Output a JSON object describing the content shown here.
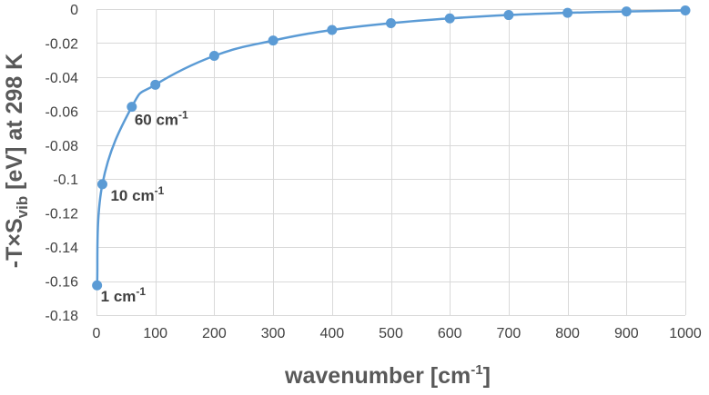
{
  "chart_data": {
    "type": "scatter",
    "title": "",
    "xlabel": {
      "base": "wavenumber [cm",
      "sup": "-1",
      "suffix": "]"
    },
    "ylabel": {
      "pre": "-T×S",
      "sub": "vib",
      "post": " [eV] at 298 K"
    },
    "xlim": [
      0,
      1000
    ],
    "ylim": [
      -0.18,
      0
    ],
    "x_ticks": [
      0,
      100,
      200,
      300,
      400,
      500,
      600,
      700,
      800,
      900,
      1000
    ],
    "x_tick_labels": [
      "0",
      "100",
      "200",
      "300",
      "400",
      "500",
      "600",
      "700",
      "800",
      "900",
      "1000"
    ],
    "y_ticks": [
      0,
      -0.02,
      -0.04,
      -0.06,
      -0.08,
      -0.1,
      -0.12,
      -0.14,
      -0.16,
      -0.18
    ],
    "y_tick_labels": [
      "0",
      "-0.02",
      "-0.04",
      "-0.06",
      "-0.08",
      "-0.1",
      "-0.12",
      "-0.14",
      "-0.16",
      "-0.18"
    ],
    "grid": true,
    "series": [
      {
        "color": "#5b9bd5",
        "points": [
          {
            "x": 1,
            "y": -0.1625
          },
          {
            "x": 10,
            "y": -0.103
          },
          {
            "x": 60,
            "y": -0.0575
          },
          {
            "x": 100,
            "y": -0.0445
          },
          {
            "x": 200,
            "y": -0.0275
          },
          {
            "x": 300,
            "y": -0.0185
          },
          {
            "x": 400,
            "y": -0.0123
          },
          {
            "x": 500,
            "y": -0.0083
          },
          {
            "x": 600,
            "y": -0.0055
          },
          {
            "x": 700,
            "y": -0.0035
          },
          {
            "x": 800,
            "y": -0.0022
          },
          {
            "x": 900,
            "y": -0.0014
          },
          {
            "x": 1000,
            "y": -0.0008
          }
        ]
      }
    ],
    "annotations": [
      {
        "x": 1,
        "y": -0.1625,
        "base": "1 cm",
        "sup": "-1"
      },
      {
        "x": 10,
        "y": -0.103,
        "base": "10 cm",
        "sup": "-1"
      },
      {
        "x": 60,
        "y": -0.0575,
        "base": "60 cm",
        "sup": "-1"
      }
    ]
  }
}
